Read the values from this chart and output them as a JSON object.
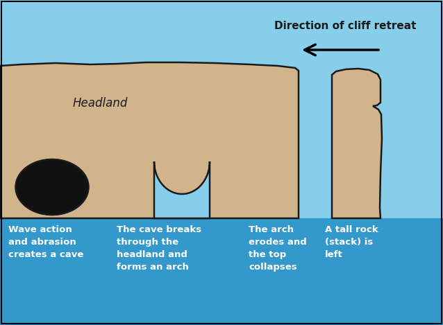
{
  "bg_sky": "#87CEEB",
  "bg_water": "#3399CC",
  "rock_fill": "#D2B48C",
  "rock_edge": "#1a1a1a",
  "cave_fill": "#111111",
  "text_color_dark": "#1a1a1a",
  "text_color_white": "#ffffff",
  "title": "Direction of cliff retreat",
  "label_headland": "Headland",
  "label1": "Wave action\nand abrasion\ncreates a cave",
  "label2": "The cave breaks\nthrough the\nheadland and\nforms an arch",
  "label3": "The arch\nerodes and\nthe top\ncollapses",
  "label4": "A tall rock\n(stack) is\nleft",
  "fig_width": 6.38,
  "fig_height": 4.69,
  "dpi": 100
}
